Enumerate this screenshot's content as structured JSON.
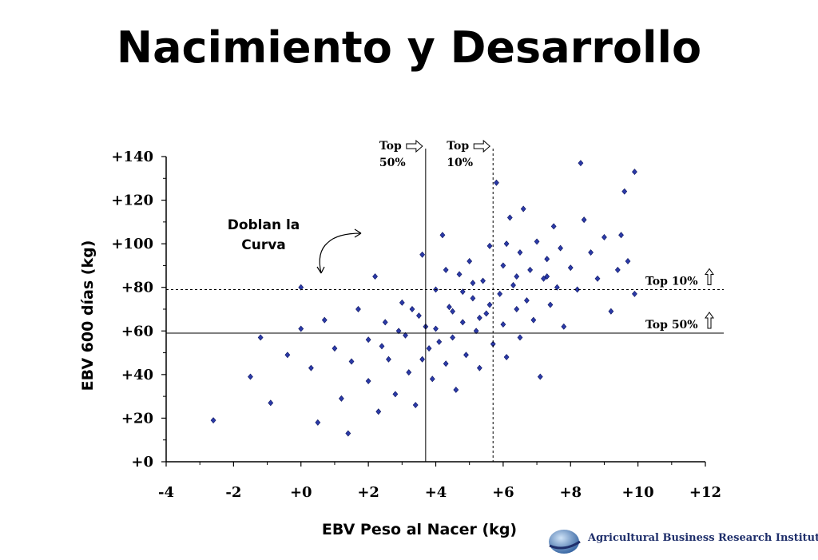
{
  "page": {
    "title": "Nacimiento y Desarrollo",
    "annotation": "Doblan la Curva",
    "logo_text": "Agricultural Business Research Institute"
  },
  "chart_data": {
    "type": "scatter",
    "xlabel": "EBV Peso al Nacer (kg)",
    "ylabel": "EBV  600 días (kg)",
    "xlim": [
      -4,
      12
    ],
    "ylim": [
      0,
      140
    ],
    "x_ticks": [
      "-4",
      "-2",
      "+0",
      "+2",
      "+4",
      "+6",
      "+8",
      "+10",
      "+12"
    ],
    "y_ticks": [
      "+0",
      "+20",
      "+40",
      "+60",
      "+80",
      "+100",
      "+120",
      "+140"
    ],
    "point_color": "#2b3aa8",
    "reference_lines": {
      "vertical_top50": {
        "x": 3.7,
        "label": "Top 50%",
        "style": "solid"
      },
      "vertical_top10": {
        "x": 5.7,
        "label": "Top 10%",
        "style": "dashed"
      },
      "horizontal_top50": {
        "y": 59,
        "label": "Top 50%",
        "style": "solid"
      },
      "horizontal_top10": {
        "y": 79,
        "label": "Top 10%",
        "style": "dashed"
      }
    },
    "points": [
      [
        -2.6,
        19
      ],
      [
        -1.5,
        39
      ],
      [
        -1.2,
        57
      ],
      [
        -0.9,
        27
      ],
      [
        -0.4,
        49
      ],
      [
        0.0,
        80
      ],
      [
        0.0,
        61
      ],
      [
        0.3,
        43
      ],
      [
        0.5,
        18
      ],
      [
        0.7,
        65
      ],
      [
        1.0,
        52
      ],
      [
        1.2,
        29
      ],
      [
        1.4,
        13
      ],
      [
        1.5,
        46
      ],
      [
        1.7,
        70
      ],
      [
        2.0,
        37
      ],
      [
        2.0,
        56
      ],
      [
        2.2,
        85
      ],
      [
        2.3,
        23
      ],
      [
        2.5,
        64
      ],
      [
        2.6,
        47
      ],
      [
        2.8,
        31
      ],
      [
        3.0,
        73
      ],
      [
        3.1,
        58
      ],
      [
        3.2,
        41
      ],
      [
        3.4,
        26
      ],
      [
        3.5,
        67
      ],
      [
        3.6,
        95
      ],
      [
        3.8,
        52
      ],
      [
        3.9,
        38
      ],
      [
        4.0,
        79
      ],
      [
        4.0,
        61
      ],
      [
        4.2,
        104
      ],
      [
        4.3,
        45
      ],
      [
        4.4,
        71
      ],
      [
        4.5,
        57
      ],
      [
        4.6,
        33
      ],
      [
        4.7,
        86
      ],
      [
        4.8,
        64
      ],
      [
        4.9,
        49
      ],
      [
        5.0,
        92
      ],
      [
        5.1,
        75
      ],
      [
        5.2,
        60
      ],
      [
        5.3,
        43
      ],
      [
        5.4,
        83
      ],
      [
        5.5,
        68
      ],
      [
        5.6,
        99
      ],
      [
        5.7,
        54
      ],
      [
        5.8,
        128
      ],
      [
        5.9,
        77
      ],
      [
        6.0,
        63
      ],
      [
        6.0,
        90
      ],
      [
        6.1,
        48
      ],
      [
        6.2,
        112
      ],
      [
        6.3,
        81
      ],
      [
        6.4,
        70
      ],
      [
        6.5,
        57
      ],
      [
        6.5,
        96
      ],
      [
        6.6,
        116
      ],
      [
        6.7,
        74
      ],
      [
        6.8,
        88
      ],
      [
        6.9,
        65
      ],
      [
        7.0,
        101
      ],
      [
        7.1,
        39
      ],
      [
        7.2,
        84
      ],
      [
        7.3,
        93
      ],
      [
        7.4,
        72
      ],
      [
        7.5,
        108
      ],
      [
        7.6,
        80
      ],
      [
        7.7,
        98
      ],
      [
        7.8,
        62
      ],
      [
        8.0,
        89
      ],
      [
        8.2,
        79
      ],
      [
        8.3,
        137
      ],
      [
        8.4,
        111
      ],
      [
        8.6,
        96
      ],
      [
        8.8,
        84
      ],
      [
        9.0,
        103
      ],
      [
        9.2,
        69
      ],
      [
        9.4,
        88
      ],
      [
        9.5,
        104
      ],
      [
        9.6,
        124
      ],
      [
        9.7,
        92
      ],
      [
        9.9,
        133
      ],
      [
        9.9,
        77
      ],
      [
        2.4,
        53
      ],
      [
        3.3,
        70
      ],
      [
        4.1,
        55
      ],
      [
        4.8,
        78
      ],
      [
        5.3,
        66
      ],
      [
        6.4,
        85
      ],
      [
        3.7,
        62
      ],
      [
        4.5,
        69
      ],
      [
        5.1,
        82
      ],
      [
        2.9,
        60
      ],
      [
        3.6,
        47
      ],
      [
        4.3,
        88
      ],
      [
        5.6,
        72
      ],
      [
        6.1,
        100
      ],
      [
        7.3,
        85
      ]
    ]
  }
}
